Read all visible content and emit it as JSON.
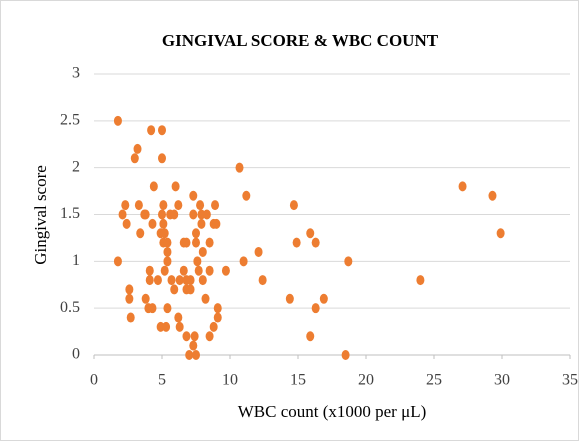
{
  "chart_data": {
    "type": "scatter",
    "title": "GINGIVAL SCORE & WBC COUNT",
    "x_label": "WBC count (x1000 per μL)",
    "y_label": "Gingival score",
    "color": "#ED7D31",
    "grid": true,
    "xlim": [
      0,
      35
    ],
    "xticks": [
      0,
      5,
      10,
      15,
      20,
      25,
      30,
      35
    ],
    "ylim": [
      0,
      3
    ],
    "yticks": [
      0,
      0.5,
      1,
      1.5,
      2,
      2.5,
      3
    ],
    "x": [
      1.76,
      1.76,
      2.1,
      2.3,
      2.4,
      2.6,
      2.6,
      2.7,
      3.0,
      3.2,
      3.3,
      3.4,
      3.7,
      3.8,
      3.8,
      4.0,
      4.1,
      4.1,
      4.2,
      4.3,
      4.3,
      4.4,
      4.7,
      4.9,
      4.9,
      5.0,
      5.0,
      5.0,
      5.1,
      5.1,
      5.1,
      5.2,
      5.2,
      5.3,
      5.4,
      5.4,
      5.4,
      5.4,
      5.6,
      5.7,
      5.9,
      5.9,
      6.0,
      6.2,
      6.2,
      6.3,
      6.3,
      6.6,
      6.6,
      6.8,
      6.8,
      6.8,
      6.8,
      7.0,
      7.1,
      7.1,
      7.3,
      7.3,
      7.3,
      7.4,
      7.5,
      7.5,
      7.5,
      7.6,
      7.7,
      7.8,
      7.9,
      7.9,
      8.0,
      8.0,
      8.2,
      8.3,
      8.5,
      8.5,
      8.5,
      8.8,
      8.8,
      8.9,
      9.0,
      9.1,
      9.1,
      9.7,
      10.7,
      11.0,
      11.2,
      12.1,
      12.4,
      14.4,
      14.7,
      14.9,
      15.9,
      15.9,
      16.3,
      16.3,
      16.9,
      18.5,
      18.7,
      24.0,
      27.1,
      29.3,
      29.9
    ],
    "values": [
      2.5,
      1.0,
      1.5,
      1.6,
      1.4,
      0.7,
      0.6,
      0.4,
      2.1,
      2.2,
      1.6,
      1.3,
      1.5,
      1.5,
      0.6,
      0.5,
      0.9,
      0.8,
      2.4,
      0.5,
      1.4,
      1.8,
      0.8,
      1.3,
      0.3,
      2.4,
      2.1,
      1.5,
      1.2,
      1.6,
      1.4,
      1.3,
      0.9,
      0.3,
      1.0,
      1.2,
      1.1,
      0.5,
      1.5,
      0.8,
      0.7,
      1.5,
      1.8,
      1.6,
      0.4,
      0.8,
      0.3,
      1.2,
      0.9,
      0.8,
      1.2,
      0.7,
      0.2,
      0,
      0.8,
      0.7,
      0.1,
      1.5,
      1.7,
      0.2,
      1.2,
      0,
      1.3,
      1.0,
      0.9,
      1.6,
      1.5,
      1.4,
      1.1,
      0.8,
      0.6,
      1.5,
      0.9,
      0.2,
      1.2,
      1.4,
      0.3,
      1.6,
      1.4,
      0.4,
      0.5,
      0.9,
      2.0,
      1.0,
      1.7,
      1.1,
      0.8,
      0.6,
      1.6,
      1.2,
      1.3,
      0.2,
      1.2,
      0.5,
      0.6,
      0,
      1.0,
      0.8,
      1.8,
      1.7,
      1.3
    ]
  }
}
